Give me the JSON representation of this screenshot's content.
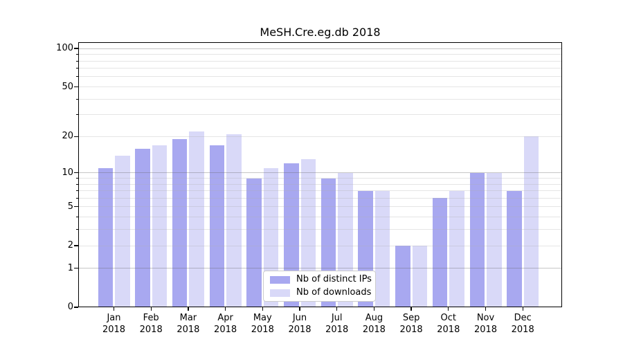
{
  "chart_data": {
    "type": "bar",
    "title": "MeSH.Cre.eg.db 2018",
    "categories": [
      "Jan",
      "Feb",
      "Mar",
      "Apr",
      "May",
      "Jun",
      "Jul",
      "Aug",
      "Sep",
      "Oct",
      "Nov",
      "Dec"
    ],
    "year_label": "2018",
    "series": [
      {
        "name": "Nb of distinct IPs",
        "color": "#a8a8f0",
        "values": [
          11,
          16,
          19,
          17,
          9,
          12,
          9,
          7,
          2,
          6,
          10,
          7
        ]
      },
      {
        "name": "Nb of downloads",
        "color": "#d9d9f8",
        "values": [
          14,
          17,
          22,
          21,
          11,
          13,
          10,
          7,
          2,
          7,
          10,
          20
        ]
      }
    ],
    "xlabel": "",
    "ylabel": "",
    "yscale": "log1p",
    "ylim": [
      0,
      112
    ],
    "yticks": [
      0,
      1,
      2,
      5,
      10,
      20,
      50,
      100
    ],
    "ytick_major_gridlines": [
      1,
      10,
      100
    ],
    "ytick_minor_gridlines": [
      2,
      3,
      4,
      5,
      6,
      7,
      8,
      9,
      20,
      30,
      40,
      50,
      60,
      70,
      80,
      90
    ],
    "grid": true,
    "legend_position": "lower center"
  }
}
